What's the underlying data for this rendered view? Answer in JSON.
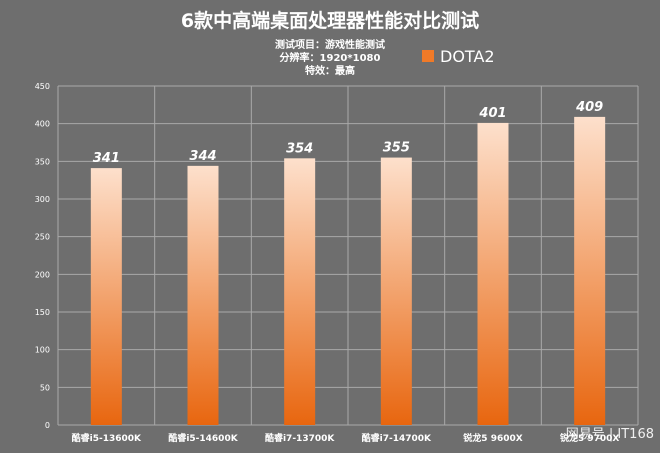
{
  "colors": {
    "background": "#6e6e6e",
    "text": "#ffffff",
    "grid": "#a9a9a9",
    "bar_top": "#fde0cc",
    "bar_bottom": "#e8660f",
    "legend_swatch": "#f07a28"
  },
  "watermark": "网易号 | IT168",
  "chart_data": {
    "type": "bar",
    "title": "6款中高端桌面处理器性能对比测试",
    "subtitle_lines": [
      "测试项目：游戏性能测试",
      "分辨率：1920*1080",
      "特效：最高"
    ],
    "categories": [
      "酷睿i5-13600K",
      "酷睿i5-14600K",
      "酷睿i7-13700K",
      "酷睿i7-14700K",
      "锐龙5 9600X",
      "锐龙5 9700X"
    ],
    "series": [
      {
        "name": "DOTA2",
        "values": [
          341,
          344,
          354,
          355,
          401,
          409
        ]
      }
    ],
    "ylim": [
      0,
      450
    ],
    "yticks": [
      0,
      50,
      100,
      150,
      200,
      250,
      300,
      350,
      400,
      450
    ],
    "grid": true,
    "legend_position": "top-right",
    "data_labels": true
  }
}
